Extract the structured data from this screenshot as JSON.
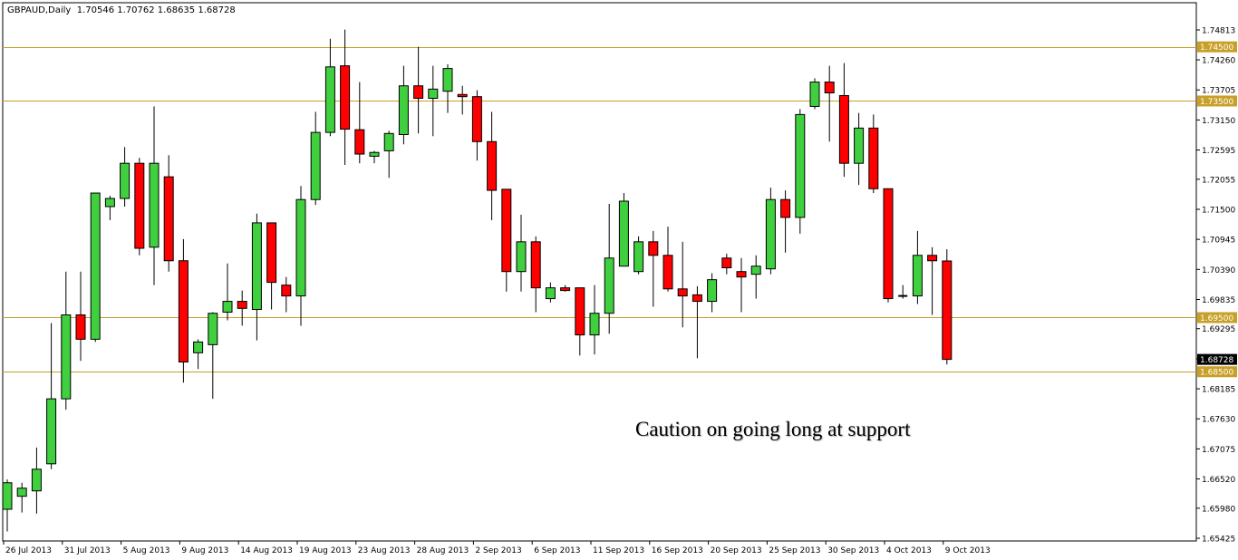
{
  "header": {
    "symbol": "GBPAUD,Daily",
    "open": "1.70546",
    "high": "1.70762",
    "low": "1.68635",
    "close": "1.68728"
  },
  "annotation_text": "Caution on going long at support",
  "colors": {
    "background": "#ffffff",
    "bull": "#3fcf3f",
    "bear": "#ff0000",
    "wick": "#000000",
    "level_line": "#c8a028",
    "level_tag": "#c8a028",
    "price_tag": "#000000"
  },
  "chart_data": {
    "type": "candlestick",
    "title": "GBPAUD,Daily",
    "y_axis": {
      "range": [
        1.6532,
        1.7512
      ],
      "ticks": [
        "1.74813",
        "1.74260",
        "1.73705",
        "1.73150",
        "1.72595",
        "1.72055",
        "1.71500",
        "1.70945",
        "1.70390",
        "1.69835",
        "1.69295",
        "1.68740",
        "1.68185",
        "1.67630",
        "1.67075",
        "1.66520",
        "1.65980",
        "1.65425"
      ]
    },
    "x_axis": {
      "labels": [
        {
          "text": "26 Jul 2013",
          "index": 0
        },
        {
          "text": "31 Jul 2013",
          "index": 4
        },
        {
          "text": "5 Aug 2013",
          "index": 8
        },
        {
          "text": "9 Aug 2013",
          "index": 12
        },
        {
          "text": "14 Aug 2013",
          "index": 16
        },
        {
          "text": "19 Aug 2013",
          "index": 20
        },
        {
          "text": "23 Aug 2013",
          "index": 24
        },
        {
          "text": "28 Aug 2013",
          "index": 28
        },
        {
          "text": "2 Sep 2013",
          "index": 32
        },
        {
          "text": "6 Sep 2013",
          "index": 36
        },
        {
          "text": "11 Sep 2013",
          "index": 40
        },
        {
          "text": "16 Sep 2013",
          "index": 44
        },
        {
          "text": "20 Sep 2013",
          "index": 48
        },
        {
          "text": "25 Sep 2013",
          "index": 52
        },
        {
          "text": "30 Sep 2013",
          "index": 56
        },
        {
          "text": "4 Oct 2013",
          "index": 60
        },
        {
          "text": "9 Oct 2013",
          "index": 64
        }
      ]
    },
    "horizontal_levels": [
      {
        "value": 1.745,
        "label": "1.74500"
      },
      {
        "value": 1.735,
        "label": "1.73500"
      },
      {
        "value": 1.695,
        "label": "1.69500"
      },
      {
        "value": 1.685,
        "label": "1.68500"
      }
    ],
    "current_price": {
      "value": 1.68728,
      "label": "1.68728"
    },
    "candles": [
      {
        "o": 1.6596,
        "h": 1.6651,
        "l": 1.6555,
        "c": 1.6645
      },
      {
        "o": 1.662,
        "h": 1.6645,
        "l": 1.659,
        "c": 1.6635
      },
      {
        "o": 1.663,
        "h": 1.671,
        "l": 1.6588,
        "c": 1.667
      },
      {
        "o": 1.668,
        "h": 1.694,
        "l": 1.667,
        "c": 1.68
      },
      {
        "o": 1.68,
        "h": 1.7035,
        "l": 1.678,
        "c": 1.6955
      },
      {
        "o": 1.6955,
        "h": 1.7035,
        "l": 1.687,
        "c": 1.691
      },
      {
        "o": 1.691,
        "h": 1.718,
        "l": 1.6905,
        "c": 1.718
      },
      {
        "o": 1.7155,
        "h": 1.7175,
        "l": 1.713,
        "c": 1.717
      },
      {
        "o": 1.717,
        "h": 1.7265,
        "l": 1.7155,
        "c": 1.7235
      },
      {
        "o": 1.7235,
        "h": 1.7245,
        "l": 1.7065,
        "c": 1.7078
      },
      {
        "o": 1.708,
        "h": 1.734,
        "l": 1.701,
        "c": 1.7235
      },
      {
        "o": 1.721,
        "h": 1.725,
        "l": 1.7035,
        "c": 1.7055
      },
      {
        "o": 1.7055,
        "h": 1.7095,
        "l": 1.683,
        "c": 1.6868
      },
      {
        "o": 1.6885,
        "h": 1.691,
        "l": 1.6855,
        "c": 1.6905
      },
      {
        "o": 1.69,
        "h": 1.696,
        "l": 1.68,
        "c": 1.6958
      },
      {
        "o": 1.696,
        "h": 1.705,
        "l": 1.6945,
        "c": 1.698
      },
      {
        "o": 1.698,
        "h": 1.7,
        "l": 1.6935,
        "c": 1.6967
      },
      {
        "o": 1.6965,
        "h": 1.7142,
        "l": 1.6908,
        "c": 1.7125
      },
      {
        "o": 1.7125,
        "h": 1.7125,
        "l": 1.6965,
        "c": 1.7015
      },
      {
        "o": 1.701,
        "h": 1.7025,
        "l": 1.696,
        "c": 1.699
      },
      {
        "o": 1.699,
        "h": 1.7193,
        "l": 1.6935,
        "c": 1.7168
      },
      {
        "o": 1.7168,
        "h": 1.733,
        "l": 1.7158,
        "c": 1.7292
      },
      {
        "o": 1.7292,
        "h": 1.7465,
        "l": 1.7285,
        "c": 1.7413
      },
      {
        "o": 1.7415,
        "h": 1.7482,
        "l": 1.7232,
        "c": 1.7298
      },
      {
        "o": 1.7297,
        "h": 1.7385,
        "l": 1.7235,
        "c": 1.7252
      },
      {
        "o": 1.7248,
        "h": 1.7258,
        "l": 1.7235,
        "c": 1.7255
      },
      {
        "o": 1.7258,
        "h": 1.7295,
        "l": 1.7208,
        "c": 1.729
      },
      {
        "o": 1.7288,
        "h": 1.7415,
        "l": 1.727,
        "c": 1.7378
      },
      {
        "o": 1.7378,
        "h": 1.745,
        "l": 1.729,
        "c": 1.7355
      },
      {
        "o": 1.7355,
        "h": 1.7415,
        "l": 1.7285,
        "c": 1.7372
      },
      {
        "o": 1.7368,
        "h": 1.7418,
        "l": 1.7328,
        "c": 1.741
      },
      {
        "o": 1.7362,
        "h": 1.7378,
        "l": 1.7325,
        "c": 1.7358
      },
      {
        "o": 1.7358,
        "h": 1.737,
        "l": 1.724,
        "c": 1.7275
      },
      {
        "o": 1.7275,
        "h": 1.733,
        "l": 1.713,
        "c": 1.7185
      },
      {
        "o": 1.7187,
        "h": 1.7187,
        "l": 1.6998,
        "c": 1.7035
      },
      {
        "o": 1.7035,
        "h": 1.714,
        "l": 1.6998,
        "c": 1.709
      },
      {
        "o": 1.709,
        "h": 1.71,
        "l": 1.696,
        "c": 1.7005
      },
      {
        "o": 1.6985,
        "h": 1.7015,
        "l": 1.6978,
        "c": 1.7005
      },
      {
        "o": 1.7005,
        "h": 1.701,
        "l": 1.6998,
        "c": 1.7
      },
      {
        "o": 1.7005,
        "h": 1.7005,
        "l": 1.688,
        "c": 1.6918
      },
      {
        "o": 1.6918,
        "h": 1.701,
        "l": 1.6882,
        "c": 1.6958
      },
      {
        "o": 1.6958,
        "h": 1.716,
        "l": 1.692,
        "c": 1.706
      },
      {
        "o": 1.7045,
        "h": 1.718,
        "l": 1.7045,
        "c": 1.7165
      },
      {
        "o": 1.7035,
        "h": 1.71,
        "l": 1.703,
        "c": 1.709
      },
      {
        "o": 1.709,
        "h": 1.711,
        "l": 1.697,
        "c": 1.7065
      },
      {
        "o": 1.7065,
        "h": 1.7118,
        "l": 1.6998,
        "c": 1.7003
      },
      {
        "o": 1.7003,
        "h": 1.709,
        "l": 1.6932,
        "c": 1.699
      },
      {
        "o": 1.6992,
        "h": 1.7008,
        "l": 1.6875,
        "c": 1.698
      },
      {
        "o": 1.698,
        "h": 1.7032,
        "l": 1.696,
        "c": 1.702
      },
      {
        "o": 1.706,
        "h": 1.7068,
        "l": 1.703,
        "c": 1.7042
      },
      {
        "o": 1.7035,
        "h": 1.706,
        "l": 1.696,
        "c": 1.7025
      },
      {
        "o": 1.703,
        "h": 1.7065,
        "l": 1.6985,
        "c": 1.7045
      },
      {
        "o": 1.704,
        "h": 1.719,
        "l": 1.703,
        "c": 1.7168
      },
      {
        "o": 1.7168,
        "h": 1.7185,
        "l": 1.707,
        "c": 1.7135
      },
      {
        "o": 1.7135,
        "h": 1.7335,
        "l": 1.7105,
        "c": 1.7325
      },
      {
        "o": 1.734,
        "h": 1.7392,
        "l": 1.7335,
        "c": 1.7385
      },
      {
        "o": 1.7385,
        "h": 1.7415,
        "l": 1.7275,
        "c": 1.7365
      },
      {
        "o": 1.736,
        "h": 1.742,
        "l": 1.721,
        "c": 1.7235
      },
      {
        "o": 1.7235,
        "h": 1.7328,
        "l": 1.7195,
        "c": 1.73
      },
      {
        "o": 1.73,
        "h": 1.7325,
        "l": 1.718,
        "c": 1.7188
      },
      {
        "o": 1.7188,
        "h": 1.7188,
        "l": 1.6978,
        "c": 1.6985
      },
      {
        "o": 1.699,
        "h": 1.701,
        "l": 1.6985,
        "c": 1.699
      },
      {
        "o": 1.699,
        "h": 1.711,
        "l": 1.6975,
        "c": 1.7065
      },
      {
        "o": 1.7065,
        "h": 1.708,
        "l": 1.6955,
        "c": 1.7055
      },
      {
        "o": 1.70546,
        "h": 1.70762,
        "l": 1.68635,
        "c": 1.68728
      }
    ]
  }
}
